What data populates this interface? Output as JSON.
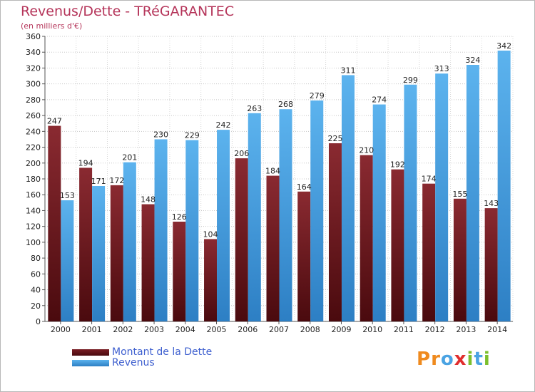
{
  "title": "Revenus/Dette - TRéGARANTEC",
  "subtitle": "(en milliers d'€)",
  "colors": {
    "dette": "#7a1d24",
    "dette_dark": "#4a0a0e",
    "revenus": "#4aa3e3",
    "revenus_dark": "#2d7fc4",
    "title": "#b5355a",
    "legend_text": "#3e5fcf"
  },
  "legend": [
    {
      "label": "Montant de la Dette",
      "color": "#7a1d24"
    },
    {
      "label": "Revenus",
      "color": "#4aa3e3"
    }
  ],
  "logo": {
    "text": "Proxiti",
    "letters": [
      {
        "ch": "P",
        "color": "#ef8a1e"
      },
      {
        "ch": "r",
        "color": "#ef8a1e"
      },
      {
        "ch": "o",
        "color": "#4aa3e3"
      },
      {
        "ch": "x",
        "color": "#e02d2d"
      },
      {
        "ch": "i",
        "color": "#7cbf2d"
      },
      {
        "ch": "t",
        "color": "#4aa3e3"
      },
      {
        "ch": "i",
        "color": "#7cbf2d"
      }
    ]
  },
  "chart_data": {
    "type": "bar",
    "categories": [
      "2000",
      "2001",
      "2002",
      "2003",
      "2004",
      "2005",
      "2006",
      "2007",
      "2008",
      "2009",
      "2010",
      "2011",
      "2012",
      "2013",
      "2014"
    ],
    "series": [
      {
        "name": "Montant de la Dette",
        "values": [
          247,
          194,
          172,
          148,
          126,
          104,
          206,
          184,
          164,
          225,
          210,
          192,
          174,
          155,
          143
        ]
      },
      {
        "name": "Revenus",
        "values": [
          153,
          171,
          201,
          230,
          229,
          242,
          263,
          268,
          279,
          311,
          274,
          299,
          313,
          324,
          342
        ]
      }
    ],
    "ylim": [
      0,
      360
    ],
    "ytick_step": 20,
    "grid": true,
    "legend_position": "bottom-left"
  }
}
